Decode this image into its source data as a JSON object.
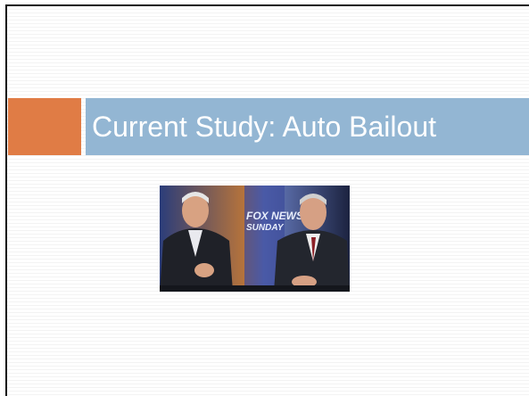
{
  "slide": {
    "title": "Current Study: Auto Bailout",
    "image": {
      "texts": [
        "FOX NEWS",
        "SUNDAY"
      ]
    }
  }
}
